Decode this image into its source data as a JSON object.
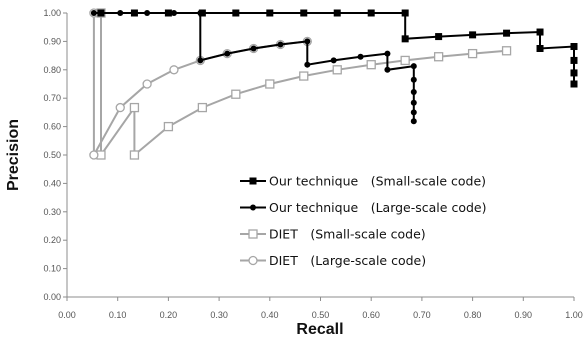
{
  "chart_data": {
    "type": "line",
    "title": "",
    "xlabel": "Recall",
    "ylabel": "Precision",
    "xlim": [
      0,
      1
    ],
    "ylim": [
      0,
      1
    ],
    "x_tick_labels": [
      "0.00",
      "0.10",
      "0.20",
      "0.30",
      "0.40",
      "0.50",
      "0.60",
      "0.70",
      "0.80",
      "0.90",
      "1.00"
    ],
    "y_tick_labels": [
      "0.00",
      "0.10",
      "0.20",
      "0.30",
      "0.40",
      "0.50",
      "0.60",
      "0.70",
      "0.80",
      "0.90",
      "1.00"
    ],
    "grid": false,
    "legend_position": "bottom-center",
    "series": [
      {
        "name": "Our technique　(Small-scale code)",
        "color": "#000000",
        "marker": "square-filled",
        "points": [
          [
            0.067,
            1.0
          ],
          [
            0.133,
            1.0
          ],
          [
            0.2,
            1.0
          ],
          [
            0.267,
            1.0
          ],
          [
            0.333,
            1.0
          ],
          [
            0.4,
            1.0
          ],
          [
            0.467,
            1.0
          ],
          [
            0.533,
            1.0
          ],
          [
            0.6,
            1.0
          ],
          [
            0.667,
            1.0
          ],
          [
            0.667,
            0.909
          ],
          [
            0.733,
            0.917
          ],
          [
            0.8,
            0.923
          ],
          [
            0.867,
            0.929
          ],
          [
            0.933,
            0.933
          ],
          [
            0.933,
            0.875
          ],
          [
            1.0,
            0.882
          ],
          [
            1.0,
            0.833
          ],
          [
            1.0,
            0.789
          ],
          [
            1.0,
            0.75
          ]
        ]
      },
      {
        "name": "Our technique　(Large-scale code)",
        "color": "#000000",
        "marker": "circle-filled",
        "points": [
          [
            0.053,
            1.0
          ],
          [
            0.105,
            1.0
          ],
          [
            0.158,
            1.0
          ],
          [
            0.211,
            1.0
          ],
          [
            0.263,
            1.0
          ],
          [
            0.263,
            0.833
          ],
          [
            0.316,
            0.857
          ],
          [
            0.368,
            0.875
          ],
          [
            0.421,
            0.889
          ],
          [
            0.474,
            0.9
          ],
          [
            0.474,
            0.818
          ],
          [
            0.526,
            0.833
          ],
          [
            0.579,
            0.846
          ],
          [
            0.632,
            0.857
          ],
          [
            0.632,
            0.8
          ],
          [
            0.684,
            0.813
          ],
          [
            0.684,
            0.765
          ],
          [
            0.684,
            0.722
          ],
          [
            0.684,
            0.684
          ],
          [
            0.684,
            0.65
          ],
          [
            0.684,
            0.619
          ]
        ]
      },
      {
        "name": "DIET　(Small-scale code)",
        "color": "#a6a6a6",
        "marker": "square-open",
        "points": [
          [
            0.067,
            1.0
          ],
          [
            0.067,
            0.5
          ],
          [
            0.133,
            0.667
          ],
          [
            0.133,
            0.5
          ],
          [
            0.2,
            0.6
          ],
          [
            0.267,
            0.667
          ],
          [
            0.333,
            0.714
          ],
          [
            0.4,
            0.75
          ],
          [
            0.467,
            0.778
          ],
          [
            0.533,
            0.8
          ],
          [
            0.6,
            0.818
          ],
          [
            0.667,
            0.833
          ],
          [
            0.733,
            0.846
          ],
          [
            0.8,
            0.857
          ],
          [
            0.867,
            0.867
          ]
        ]
      },
      {
        "name": "DIET　(Large-scale code)",
        "color": "#a6a6a6",
        "marker": "circle-open",
        "points": [
          [
            0.053,
            1.0
          ],
          [
            0.053,
            0.5
          ],
          [
            0.105,
            0.667
          ],
          [
            0.158,
            0.75
          ],
          [
            0.211,
            0.8
          ],
          [
            0.263,
            0.833
          ],
          [
            0.316,
            0.857
          ],
          [
            0.368,
            0.875
          ],
          [
            0.421,
            0.889
          ],
          [
            0.474,
            0.9
          ]
        ]
      }
    ]
  }
}
